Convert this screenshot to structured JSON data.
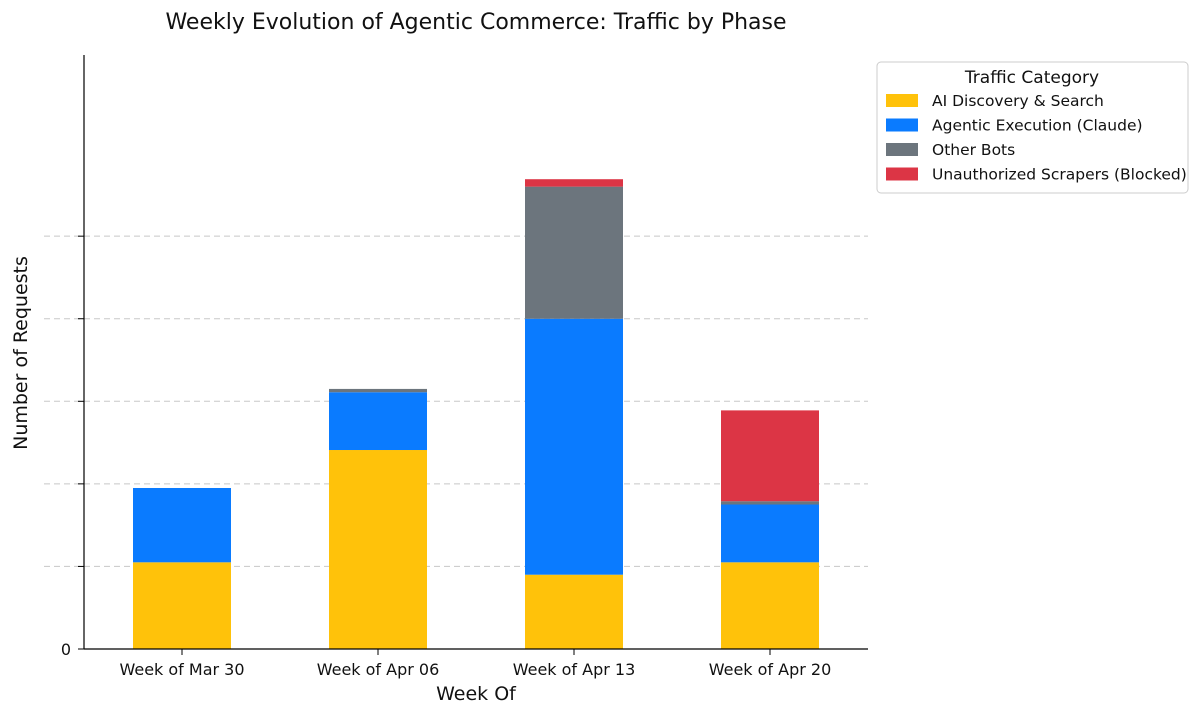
{
  "chart_data": {
    "type": "bar",
    "stacked": true,
    "title": "Weekly Evolution of Agentic Commerce: Traffic by Phase",
    "xlabel": "Week Of",
    "ylabel": "Number of Requests",
    "categories": [
      "Week of Mar 30",
      "Week of Apr 06",
      "Week of Apr 13",
      "Week of Apr 20"
    ],
    "series": [
      {
        "name": "AI Discovery & Search",
        "color": "#FFC20A",
        "values": [
          1.05,
          2.41,
          0.9,
          1.05
        ]
      },
      {
        "name": "Agentic Execution (Claude)",
        "color": "#0A7BFF",
        "values": [
          0.9,
          0.7,
          3.1,
          0.7
        ]
      },
      {
        "name": "Other Bots",
        "color": "#6C757D",
        "values": [
          0,
          0.04,
          1.6,
          0.04
        ]
      },
      {
        "name": "Unauthorized Scrapers (Blocked)",
        "color": "#DC3545",
        "values": [
          0,
          0,
          0.09,
          1.1
        ]
      }
    ],
    "ylim": [
      0,
      6
    ],
    "yticks": [
      0,
      1,
      2,
      3,
      4,
      5
    ],
    "ytick_labels": [
      "0",
      "",
      "",
      "",
      "",
      ""
    ],
    "grid": "y-dashed",
    "legend": {
      "title": "Traffic Category",
      "placement": "top-right outside"
    }
  }
}
